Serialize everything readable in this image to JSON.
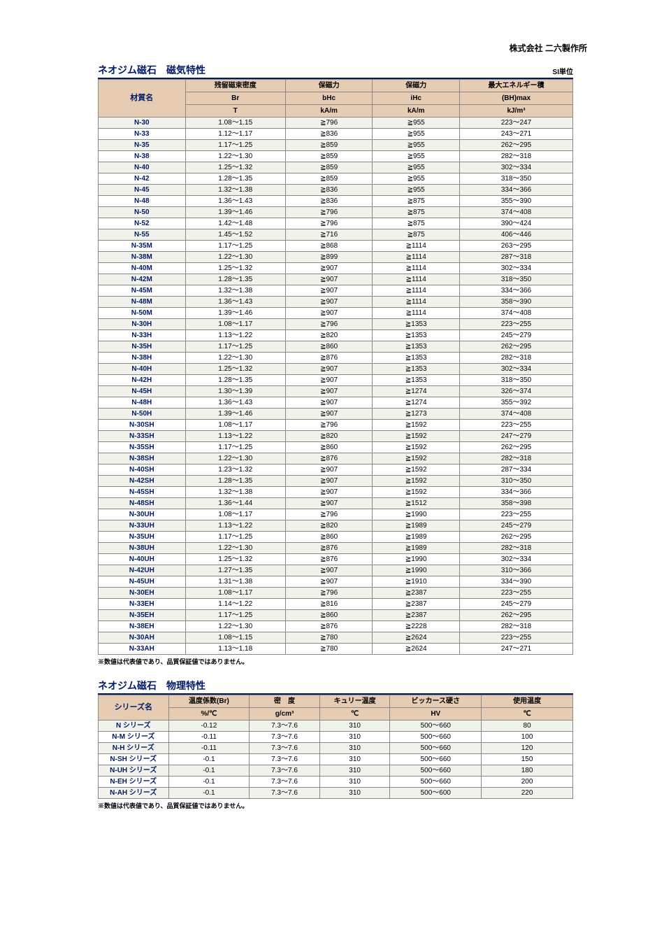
{
  "company_name": "株式会社 二六製作所",
  "table1": {
    "title": "ネオジム磁石　磁気特性",
    "si_label": "SI単位",
    "header_row1": {
      "name": "材質名",
      "c1": "残留磁束密度",
      "c2": "保磁力",
      "c3": "保磁力",
      "c4": "最大エネルギー積"
    },
    "header_row2": {
      "c1": "Br",
      "c2": "bHc",
      "c3": "iHc",
      "c4": "(BH)max"
    },
    "header_row3": {
      "c1": "T",
      "c2": "kA/m",
      "c3": "kA/m",
      "c4": "kJ/m³"
    },
    "rows": [
      {
        "n": "N-30",
        "br": "1.08～1.15",
        "bhc": "≧796",
        "ihc": "≧955",
        "bh": "223～247"
      },
      {
        "n": "N-33",
        "br": "1.12～1.17",
        "bhc": "≧836",
        "ihc": "≧955",
        "bh": "243～271"
      },
      {
        "n": "N-35",
        "br": "1.17～1.25",
        "bhc": "≧859",
        "ihc": "≧955",
        "bh": "262～295"
      },
      {
        "n": "N-38",
        "br": "1.22～1.30",
        "bhc": "≧859",
        "ihc": "≧955",
        "bh": "282～318"
      },
      {
        "n": "N-40",
        "br": "1.25～1.32",
        "bhc": "≧859",
        "ihc": "≧955",
        "bh": "302～334"
      },
      {
        "n": "N-42",
        "br": "1.28～1.35",
        "bhc": "≧859",
        "ihc": "≧955",
        "bh": "318～350"
      },
      {
        "n": "N-45",
        "br": "1.32～1.38",
        "bhc": "≧836",
        "ihc": "≧955",
        "bh": "334～366"
      },
      {
        "n": "N-48",
        "br": "1.36～1.43",
        "bhc": "≧836",
        "ihc": "≧875",
        "bh": "355～390"
      },
      {
        "n": "N-50",
        "br": "1.39～1.46",
        "bhc": "≧796",
        "ihc": "≧875",
        "bh": "374～408"
      },
      {
        "n": "N-52",
        "br": "1.42～1.48",
        "bhc": "≧796",
        "ihc": "≧875",
        "bh": "390～424"
      },
      {
        "n": "N-55",
        "br": "1.45～1.52",
        "bhc": "≧716",
        "ihc": "≧875",
        "bh": "406～446"
      },
      {
        "n": "N-35M",
        "br": "1.17～1.25",
        "bhc": "≧868",
        "ihc": "≧1114",
        "bh": "263～295"
      },
      {
        "n": "N-38M",
        "br": "1.22～1.30",
        "bhc": "≧899",
        "ihc": "≧1114",
        "bh": "287～318"
      },
      {
        "n": "N-40M",
        "br": "1.25～1.32",
        "bhc": "≧907",
        "ihc": "≧1114",
        "bh": "302～334"
      },
      {
        "n": "N-42M",
        "br": "1.28～1.35",
        "bhc": "≧907",
        "ihc": "≧1114",
        "bh": "318～350"
      },
      {
        "n": "N-45M",
        "br": "1.32～1.38",
        "bhc": "≧907",
        "ihc": "≧1114",
        "bh": "334～366"
      },
      {
        "n": "N-48M",
        "br": "1.36～1.43",
        "bhc": "≧907",
        "ihc": "≧1114",
        "bh": "358～390"
      },
      {
        "n": "N-50M",
        "br": "1.39～1.46",
        "bhc": "≧907",
        "ihc": "≧1114",
        "bh": "374～408"
      },
      {
        "n": "N-30H",
        "br": "1.08～1.17",
        "bhc": "≧796",
        "ihc": "≧1353",
        "bh": "223～255"
      },
      {
        "n": "N-33H",
        "br": "1.13～1.22",
        "bhc": "≧820",
        "ihc": "≧1353",
        "bh": "245～279"
      },
      {
        "n": "N-35H",
        "br": "1.17～1.25",
        "bhc": "≧860",
        "ihc": "≧1353",
        "bh": "262～295"
      },
      {
        "n": "N-38H",
        "br": "1.22～1.30",
        "bhc": "≧876",
        "ihc": "≧1353",
        "bh": "282～318"
      },
      {
        "n": "N-40H",
        "br": "1.25～1.32",
        "bhc": "≧907",
        "ihc": "≧1353",
        "bh": "302～334"
      },
      {
        "n": "N-42H",
        "br": "1.28～1.35",
        "bhc": "≧907",
        "ihc": "≧1353",
        "bh": "318～350"
      },
      {
        "n": "N-45H",
        "br": "1.30～1.39",
        "bhc": "≧907",
        "ihc": "≧1274",
        "bh": "326～374"
      },
      {
        "n": "N-48H",
        "br": "1.36～1.43",
        "bhc": "≧907",
        "ihc": "≧1274",
        "bh": "355～392"
      },
      {
        "n": "N-50H",
        "br": "1.39～1.46",
        "bhc": "≧907",
        "ihc": "≧1273",
        "bh": "374～408"
      },
      {
        "n": "N-30SH",
        "br": "1.08～1.17",
        "bhc": "≧796",
        "ihc": "≧1592",
        "bh": "223～255"
      },
      {
        "n": "N-33SH",
        "br": "1.13～1.22",
        "bhc": "≧820",
        "ihc": "≧1592",
        "bh": "247～279"
      },
      {
        "n": "N-35SH",
        "br": "1.17～1.25",
        "bhc": "≧860",
        "ihc": "≧1592",
        "bh": "262～295"
      },
      {
        "n": "N-38SH",
        "br": "1.22～1.30",
        "bhc": "≧876",
        "ihc": "≧1592",
        "bh": "282～318"
      },
      {
        "n": "N-40SH",
        "br": "1.23～1.32",
        "bhc": "≧907",
        "ihc": "≧1592",
        "bh": "287～334"
      },
      {
        "n": "N-42SH",
        "br": "1.28～1.35",
        "bhc": "≧907",
        "ihc": "≧1592",
        "bh": "310～350"
      },
      {
        "n": "N-45SH",
        "br": "1.32～1.38",
        "bhc": "≧907",
        "ihc": "≧1592",
        "bh": "334～366"
      },
      {
        "n": "N-48SH",
        "br": "1.36～1.44",
        "bhc": "≧907",
        "ihc": "≧1512",
        "bh": "358～398"
      },
      {
        "n": "N-30UH",
        "br": "1.08～1.17",
        "bhc": "≧796",
        "ihc": "≧1990",
        "bh": "223～255"
      },
      {
        "n": "N-33UH",
        "br": "1.13～1.22",
        "bhc": "≧820",
        "ihc": "≧1989",
        "bh": "245～279"
      },
      {
        "n": "N-35UH",
        "br": "1.17～1.25",
        "bhc": "≧860",
        "ihc": "≧1989",
        "bh": "262～295"
      },
      {
        "n": "N-38UH",
        "br": "1.22～1.30",
        "bhc": "≧876",
        "ihc": "≧1989",
        "bh": "282～318"
      },
      {
        "n": "N-40UH",
        "br": "1.25～1.32",
        "bhc": "≧876",
        "ihc": "≧1990",
        "bh": "302～334"
      },
      {
        "n": "N-42UH",
        "br": "1.27～1.35",
        "bhc": "≧907",
        "ihc": "≧1990",
        "bh": "310～366"
      },
      {
        "n": "N-45UH",
        "br": "1.31～1.38",
        "bhc": "≧907",
        "ihc": "≧1910",
        "bh": "334～390"
      },
      {
        "n": "N-30EH",
        "br": "1.08～1.17",
        "bhc": "≧796",
        "ihc": "≧2387",
        "bh": "223～255"
      },
      {
        "n": "N-33EH",
        "br": "1.14～1.22",
        "bhc": "≧816",
        "ihc": "≧2387",
        "bh": "245～279"
      },
      {
        "n": "N-35EH",
        "br": "1.17～1.25",
        "bhc": "≧860",
        "ihc": "≧2387",
        "bh": "262～295"
      },
      {
        "n": "N-38EH",
        "br": "1.22～1.30",
        "bhc": "≧876",
        "ihc": "≧2228",
        "bh": "282～318"
      },
      {
        "n": "N-30AH",
        "br": "1.08～1.15",
        "bhc": "≧780",
        "ihc": "≧2624",
        "bh": "223～255"
      },
      {
        "n": "N-33AH",
        "br": "1.13～1.18",
        "bhc": "≧780",
        "ihc": "≧2624",
        "bh": "247～271"
      }
    ]
  },
  "footnote": "※数値は代表値であり、品質保証値ではありません。",
  "table2": {
    "title": "ネオジム磁石　物理特性",
    "header_row1": {
      "name": "シリーズ名",
      "c1": "温度係数(Br)",
      "c2": "密　度",
      "c3": "キュリー温度",
      "c4": "ビッカース硬さ",
      "c5": "使用温度"
    },
    "header_row2": {
      "c1": "%/℃",
      "c2": "g/cm³",
      "c3": "℃",
      "c4": "HV",
      "c5": "℃"
    },
    "rows": [
      {
        "n": "N シリーズ",
        "c1": "-0.12",
        "c2": "7.3～7.6",
        "c3": "310",
        "c4": "500～660",
        "c5": "80"
      },
      {
        "n": "N-M シリーズ",
        "c1": "-0.11",
        "c2": "7.3～7.6",
        "c3": "310",
        "c4": "500～660",
        "c5": "100"
      },
      {
        "n": "N-H シリーズ",
        "c1": "-0.11",
        "c2": "7.3～7.6",
        "c3": "310",
        "c4": "500～660",
        "c5": "120"
      },
      {
        "n": "N-SH シリーズ",
        "c1": "-0.1",
        "c2": "7.3～7.6",
        "c3": "310",
        "c4": "500～660",
        "c5": "150"
      },
      {
        "n": "N-UH シリーズ",
        "c1": "-0.1",
        "c2": "7.3～7.6",
        "c3": "310",
        "c4": "500～660",
        "c5": "180"
      },
      {
        "n": "N-EH シリーズ",
        "c1": "-0.1",
        "c2": "7.3～7.6",
        "c3": "310",
        "c4": "500～660",
        "c5": "200"
      },
      {
        "n": "N-AH シリーズ",
        "c1": "-0.1",
        "c2": "7.3～7.6",
        "c3": "310",
        "c4": "500～600",
        "c5": "220"
      }
    ]
  }
}
